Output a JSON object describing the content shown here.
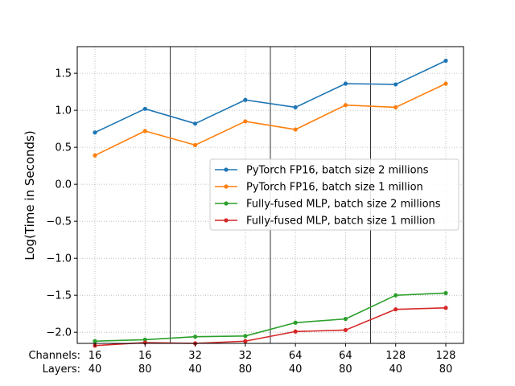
{
  "chart_data": {
    "type": "line",
    "ylabel": "Log(Time in Seconds)",
    "x_row_labels": [
      "Channels:",
      "Layers:"
    ],
    "categories": [
      {
        "channels": "16",
        "layers": "40"
      },
      {
        "channels": "16",
        "layers": "80"
      },
      {
        "channels": "32",
        "layers": "40"
      },
      {
        "channels": "32",
        "layers": "80"
      },
      {
        "channels": "64",
        "layers": "40"
      },
      {
        "channels": "64",
        "layers": "80"
      },
      {
        "channels": "128",
        "layers": "40"
      },
      {
        "channels": "128",
        "layers": "80"
      }
    ],
    "ylim": [
      -2.15,
      1.86
    ],
    "yticks": [
      -2.0,
      -1.5,
      -1.0,
      -0.5,
      0.0,
      0.5,
      1.0,
      1.5
    ],
    "ytick_labels": [
      "−2.0",
      "−1.5",
      "−1.0",
      "−0.5",
      "0.0",
      "0.5",
      "1.0",
      "1.5"
    ],
    "group_separators_after_index": [
      1,
      3,
      5
    ],
    "grid": "dotted",
    "legend_position": "center-right",
    "series": [
      {
        "name": "PyTorch FP16, batch size 2 millions",
        "color": "#1f77b4",
        "values": [
          0.7,
          1.02,
          0.82,
          1.14,
          1.04,
          1.36,
          1.35,
          1.67
        ]
      },
      {
        "name": "PyTorch FP16, batch size 1 million",
        "color": "#ff7f0e",
        "values": [
          0.39,
          0.72,
          0.53,
          0.85,
          0.74,
          1.07,
          1.04,
          1.36
        ]
      },
      {
        "name": "Fully-fused MLP, batch size 2 millions",
        "color": "#2ca02c",
        "values": [
          -2.12,
          -2.1,
          -2.06,
          -2.05,
          -1.87,
          -1.82,
          -1.5,
          -1.47
        ]
      },
      {
        "name": "Fully-fused MLP, batch size 1 million",
        "color": "#d62728",
        "values": [
          -2.18,
          -2.14,
          -2.15,
          -2.12,
          -1.99,
          -1.97,
          -1.69,
          -1.67
        ]
      }
    ]
  }
}
